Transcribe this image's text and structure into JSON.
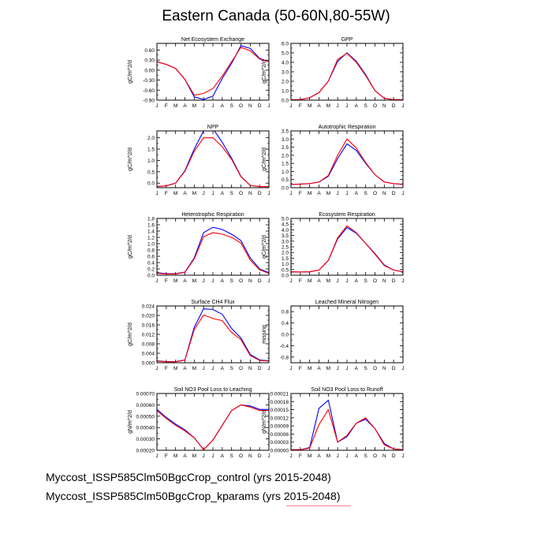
{
  "title": "Eastern Canada (50-60N,80-55W)",
  "captions": [
    "Myccost_ISSP585Clm50BgcCrop_control (yrs 2015-2048)",
    "Myccost_ISSP585Clm50BgcCrop_kparams (yrs 2015-2048)"
  ],
  "colors": {
    "control": "#0000ff",
    "kparams": "#ff0000",
    "axis": "#000000"
  },
  "months": [
    "J",
    "F",
    "M",
    "A",
    "M",
    "J",
    "J",
    "A",
    "S",
    "O",
    "N",
    "D",
    "J"
  ],
  "chart_data": [
    {
      "type": "line",
      "title": "Net Ecosystem Exchange",
      "ylabel": "gC/m^2/d",
      "ylim": [
        -0.9,
        0.8
      ],
      "yticks": [
        "-0.90",
        "-0.60",
        "-0.30",
        "0.00",
        "0.30",
        "0.60"
      ],
      "ytick_values": [
        -0.9,
        -0.6,
        -0.3,
        0.0,
        0.3,
        0.6
      ],
      "series": [
        {
          "key": "control",
          "values": [
            0.25,
            0.17,
            0.05,
            -0.28,
            -0.8,
            -0.88,
            -0.78,
            -0.25,
            0.2,
            0.73,
            0.65,
            0.35,
            0.25
          ]
        },
        {
          "key": "kparams",
          "values": [
            0.25,
            0.17,
            0.05,
            -0.28,
            -0.75,
            -0.7,
            -0.55,
            -0.18,
            0.25,
            0.68,
            0.58,
            0.33,
            0.25
          ]
        }
      ]
    },
    {
      "type": "line",
      "title": "GPP",
      "ylabel": "gC/m^2/d",
      "ylim": [
        0.0,
        6.0
      ],
      "yticks": [
        "0.0",
        "1.0",
        "2.0",
        "3.0",
        "4.0",
        "5.0",
        "6.0"
      ],
      "ytick_values": [
        0,
        1,
        2,
        3,
        4,
        5,
        6
      ],
      "series": [
        {
          "key": "control",
          "values": [
            0.05,
            0.05,
            0.25,
            0.8,
            2.0,
            4.1,
            5.0,
            4.1,
            2.7,
            1.0,
            0.2,
            0.05,
            0.05
          ]
        },
        {
          "key": "kparams",
          "values": [
            0.05,
            0.05,
            0.25,
            0.8,
            2.0,
            4.3,
            4.95,
            4.0,
            2.6,
            1.0,
            0.2,
            0.05,
            0.05
          ]
        }
      ]
    },
    {
      "type": "line",
      "title": "NPP",
      "ylabel": "gC/m^2/d",
      "ylim": [
        -0.2,
        2.3
      ],
      "yticks": [
        "0.0",
        "0.5",
        "1.0",
        "1.5",
        "2.0"
      ],
      "ytick_values": [
        0,
        0.5,
        1.0,
        1.5,
        2.0
      ],
      "series": [
        {
          "key": "control",
          "values": [
            -0.15,
            -0.12,
            0.0,
            0.55,
            1.5,
            2.3,
            2.4,
            1.8,
            1.1,
            0.3,
            -0.1,
            -0.15,
            -0.15
          ]
        },
        {
          "key": "kparams",
          "values": [
            -0.15,
            -0.12,
            0.0,
            0.52,
            1.4,
            2.0,
            2.0,
            1.6,
            1.05,
            0.28,
            -0.1,
            -0.15,
            -0.15
          ]
        }
      ]
    },
    {
      "type": "line",
      "title": "Autotrophic Respiration",
      "ylabel": "gC/m^2/d",
      "ylim": [
        0.0,
        3.5
      ],
      "yticks": [
        "0.0",
        "0.5",
        "1.0",
        "1.5",
        "2.0",
        "2.5",
        "3.0",
        "3.5"
      ],
      "ytick_values": [
        0,
        0.5,
        1.0,
        1.5,
        2.0,
        2.5,
        3.0,
        3.5
      ],
      "series": [
        {
          "key": "control",
          "values": [
            0.2,
            0.22,
            0.25,
            0.35,
            0.7,
            1.8,
            2.7,
            2.3,
            1.5,
            0.8,
            0.35,
            0.25,
            0.2
          ]
        },
        {
          "key": "kparams",
          "values": [
            0.2,
            0.22,
            0.25,
            0.35,
            0.75,
            2.0,
            3.0,
            2.45,
            1.55,
            0.8,
            0.35,
            0.25,
            0.2
          ]
        }
      ]
    },
    {
      "type": "line",
      "title": "Heterotrophic Respiration",
      "ylabel": "gC/m^2/d",
      "ylim": [
        0.0,
        1.8
      ],
      "yticks": [
        "0.0",
        "0.2",
        "0.4",
        "0.6",
        "0.8",
        "1.0",
        "1.2",
        "1.4",
        "1.6",
        "1.8"
      ],
      "ytick_values": [
        0,
        0.2,
        0.4,
        0.6,
        0.8,
        1.0,
        1.2,
        1.4,
        1.6,
        1.8
      ],
      "series": [
        {
          "key": "control",
          "values": [
            0.08,
            0.05,
            0.05,
            0.1,
            0.55,
            1.35,
            1.52,
            1.45,
            1.3,
            1.1,
            0.55,
            0.2,
            0.08
          ]
        },
        {
          "key": "kparams",
          "values": [
            0.06,
            0.04,
            0.04,
            0.09,
            0.52,
            1.22,
            1.35,
            1.3,
            1.2,
            1.02,
            0.48,
            0.17,
            0.06
          ]
        }
      ]
    },
    {
      "type": "line",
      "title": "Ecosystem Respiration",
      "ylabel": "gC/m^2/d",
      "ylim": [
        0.0,
        5.0
      ],
      "yticks": [
        "0.0",
        "0.5",
        "1.0",
        "1.5",
        "2.0",
        "2.5",
        "3.0",
        "3.5",
        "4.0",
        "4.5",
        "5.0"
      ],
      "ytick_values": [
        0,
        0.5,
        1.0,
        1.5,
        2.0,
        2.5,
        3.0,
        3.5,
        4.0,
        4.5,
        5.0
      ],
      "series": [
        {
          "key": "control",
          "values": [
            0.3,
            0.28,
            0.3,
            0.45,
            1.3,
            3.2,
            4.2,
            3.7,
            2.8,
            1.9,
            0.9,
            0.45,
            0.3
          ]
        },
        {
          "key": "kparams",
          "values": [
            0.3,
            0.28,
            0.3,
            0.45,
            1.3,
            3.3,
            4.35,
            3.75,
            2.8,
            1.85,
            0.85,
            0.45,
            0.3
          ]
        }
      ]
    },
    {
      "type": "line",
      "title": "Surface CH4 Flux",
      "ylabel": "gC/m^2/d",
      "ylim": [
        0.0,
        0.024
      ],
      "yticks": [
        "0.000",
        "0.004",
        "0.008",
        "0.012",
        "0.016",
        "0.020",
        "0.024"
      ],
      "ytick_values": [
        0,
        0.004,
        0.008,
        0.012,
        0.016,
        0.02,
        0.024
      ],
      "series": [
        {
          "key": "control",
          "values": [
            0.0008,
            0.0005,
            0.0005,
            0.0012,
            0.015,
            0.0228,
            0.0225,
            0.0205,
            0.0145,
            0.0105,
            0.0035,
            0.0012,
            0.0008
          ]
        },
        {
          "key": "kparams",
          "values": [
            0.0007,
            0.0004,
            0.0004,
            0.0011,
            0.014,
            0.0202,
            0.0187,
            0.0178,
            0.0128,
            0.0098,
            0.003,
            0.001,
            0.0007
          ]
        }
      ]
    },
    {
      "type": "line",
      "title": "Leached Mineral Nitrogen",
      "ylabel": "missing",
      "ylim": [
        -1.0,
        1.0
      ],
      "yticks": [
        "-0.8",
        "-0.4",
        "0.0",
        "0.4",
        "0.8"
      ],
      "ytick_values": [
        -0.8,
        -0.4,
        0.0,
        0.4,
        0.8
      ],
      "series": []
    },
    {
      "type": "line",
      "title": "Soil NO3 Pool Loss to Leaching",
      "ylabel": "gN/m^2/d",
      "ylim": [
        0.0002,
        0.0007
      ],
      "yticks": [
        "0.00020",
        "0.00030",
        "0.00040",
        "0.00050",
        "0.00060",
        "0.00070"
      ],
      "ytick_values": [
        0.0002,
        0.0003,
        0.0004,
        0.0005,
        0.0006,
        0.0007
      ],
      "series": [
        {
          "key": "control",
          "values": [
            0.00056,
            0.00049,
            0.00043,
            0.00038,
            0.00031,
            0.000205,
            0.00029,
            0.00042,
            0.00055,
            0.0006,
            0.00059,
            0.00056,
            0.00056
          ]
        },
        {
          "key": "kparams",
          "values": [
            0.00055,
            0.00048,
            0.00042,
            0.00037,
            0.00031,
            0.000205,
            0.00029,
            0.00042,
            0.00055,
            0.0006,
            0.00058,
            0.00055,
            0.00055
          ]
        }
      ]
    },
    {
      "type": "line",
      "title": "Soil NO3 Pool Loss to Runoff",
      "ylabel": "gN/m^2/d",
      "ylim": [
        0.0,
        0.00021
      ],
      "yticks": [
        "0.00000",
        "0.00003",
        "0.00006",
        "0.00009",
        "0.00012",
        "0.00015",
        "0.00018",
        "0.00021"
      ],
      "ytick_values": [
        0,
        3e-05,
        6e-05,
        9e-05,
        0.00012,
        0.00015,
        0.00018,
        0.00021
      ],
      "series": [
        {
          "key": "control",
          "values": [
            2e-06,
            2e-06,
            1e-05,
            0.000155,
            0.000185,
            3e-05,
            5e-05,
            0.0001,
            0.000115,
            8e-05,
            2.5e-05,
            5e-06,
            2e-06
          ]
        },
        {
          "key": "kparams",
          "values": [
            2e-06,
            2e-06,
            8e-06,
            9.5e-05,
            0.00015,
            3e-05,
            5.5e-05,
            0.0001,
            0.00012,
            8e-05,
            2e-05,
            5e-06,
            2e-06
          ]
        }
      ]
    }
  ]
}
